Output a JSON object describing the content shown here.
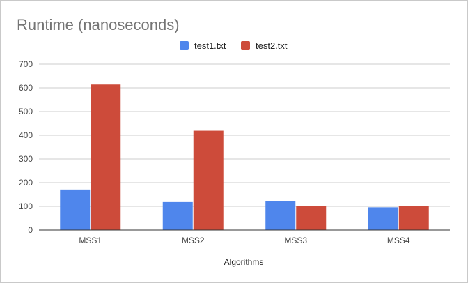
{
  "chart_data": {
    "type": "bar",
    "title": "Runtime (nanoseconds)",
    "xlabel": "Algorithms",
    "ylabel": "",
    "categories": [
      "MSS1",
      "MSS2",
      "MSS3",
      "MSS4"
    ],
    "series": [
      {
        "name": "test1.txt",
        "color": "#4F86EC",
        "values": [
          171,
          118,
          122,
          96
        ]
      },
      {
        "name": "test2.txt",
        "color": "#CD4B3A",
        "values": [
          614,
          419,
          100,
          100
        ]
      }
    ],
    "ylim": [
      0,
      700
    ],
    "yticks": [
      0,
      100,
      200,
      300,
      400,
      500,
      600,
      700
    ],
    "grid": true,
    "legend_position": "top-center"
  }
}
